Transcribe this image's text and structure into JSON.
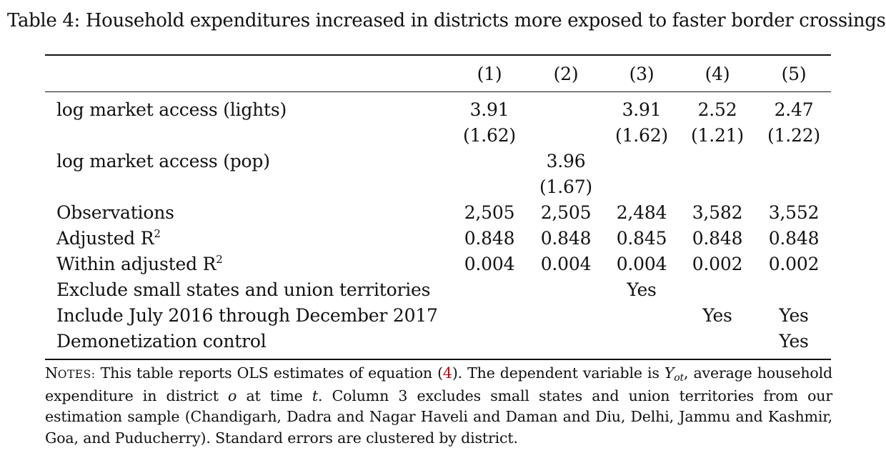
{
  "caption": "Table 4: Household expenditures increased in districts more exposed to faster border crossings",
  "columns": [
    "(1)",
    "(2)",
    "(3)",
    "(4)",
    "(5)"
  ],
  "rows": [
    {
      "label": "log market access (lights)",
      "values": [
        "3.91",
        "",
        "3.91",
        "2.52",
        "2.47"
      ]
    },
    {
      "label": "",
      "values": [
        "(1.62)",
        "",
        "(1.62)",
        "(1.21)",
        "(1.22)"
      ]
    },
    {
      "label": "log market access (pop)",
      "values": [
        "",
        "3.96",
        "",
        "",
        ""
      ]
    },
    {
      "label": "",
      "values": [
        "",
        "(1.67)",
        "",
        "",
        ""
      ]
    },
    {
      "label": "Observations",
      "values": [
        "2,505",
        "2,505",
        "2,484",
        "3,582",
        "3,552"
      ]
    },
    {
      "label_main": "Adjusted R",
      "label_sup": "2",
      "values": [
        "0.848",
        "0.848",
        "0.845",
        "0.848",
        "0.848"
      ]
    },
    {
      "label_main": "Within adjusted R",
      "label_sup": "2",
      "values": [
        "0.004",
        "0.004",
        "0.004",
        "0.002",
        "0.002"
      ]
    },
    {
      "label": "Exclude small states and union territories",
      "values": [
        "",
        "",
        "Yes",
        "",
        ""
      ]
    },
    {
      "label": "Include July 2016 through December 2017",
      "values": [
        "",
        "",
        "",
        "Yes",
        "Yes"
      ]
    },
    {
      "label": "Demonetization control",
      "values": [
        "",
        "",
        "",
        "",
        "Yes"
      ]
    }
  ],
  "notes": {
    "head_initial": "N",
    "head_rest": "OTES:",
    "t1": " This table reports OLS estimates of equation (",
    "ref": "4",
    "t2": "). The dependent variable is ",
    "var_main": "Y",
    "var_sub": "ot",
    "t3": ", average household expenditure in district ",
    "var_o": "o",
    "t4": " at time ",
    "var_t": "t",
    "t5": ". Column 3 excludes small states and union territories from our estimation sample (Chandigarh, Dadra and Nagar Haveli and Daman and Diu, Delhi, Jammu and Kashmir, Goa, and Puducherry). Standard errors are clustered by district."
  }
}
